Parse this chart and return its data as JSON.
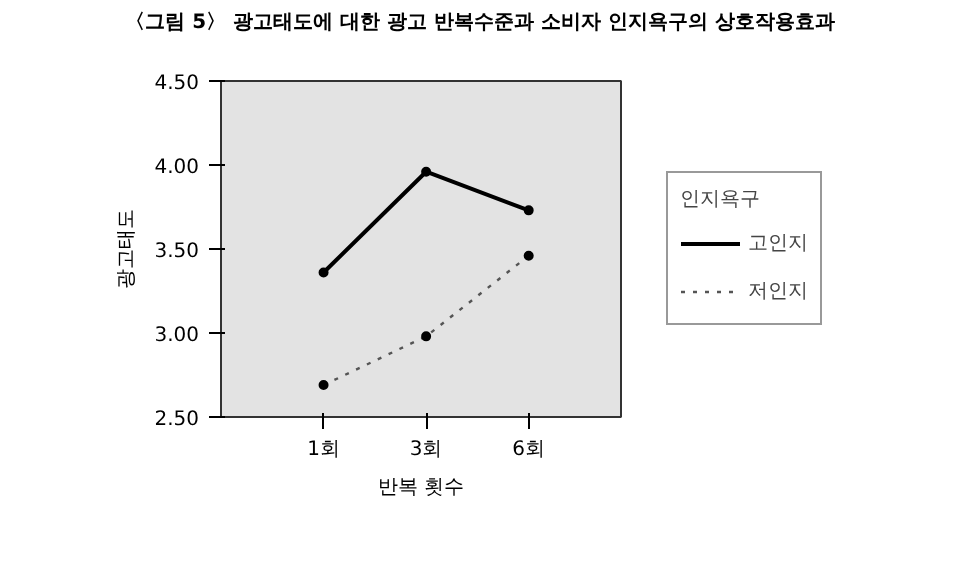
{
  "chart_data": {
    "type": "line",
    "title": "〈그림 5〉 광고태도에 대한 광고 반복수준과 소비자 인지욕구의 상호작용효과",
    "xlabel": "반복 횟수",
    "ylabel": "광고태도",
    "legend_title": "인지욕구",
    "categories": [
      "1회",
      "3회",
      "6회"
    ],
    "series": [
      {
        "name": "고인지",
        "color": "#000000",
        "line_style": "solid",
        "values": [
          3.36,
          3.96,
          3.73
        ]
      },
      {
        "name": "저인지",
        "color": "#555555",
        "line_style": "dotted",
        "values": [
          2.69,
          2.98,
          3.46
        ]
      }
    ],
    "ylim": [
      2.5,
      4.5
    ],
    "yticks": [
      {
        "value": 2.5,
        "label": "2.50"
      },
      {
        "value": 3,
        "label": "3.00"
      },
      {
        "value": 3.5,
        "label": "3.50"
      },
      {
        "value": 4,
        "label": "4.00"
      },
      {
        "value": 4.5,
        "label": "4.50"
      }
    ],
    "marker": "circle",
    "grid": false,
    "legend": "right"
  }
}
